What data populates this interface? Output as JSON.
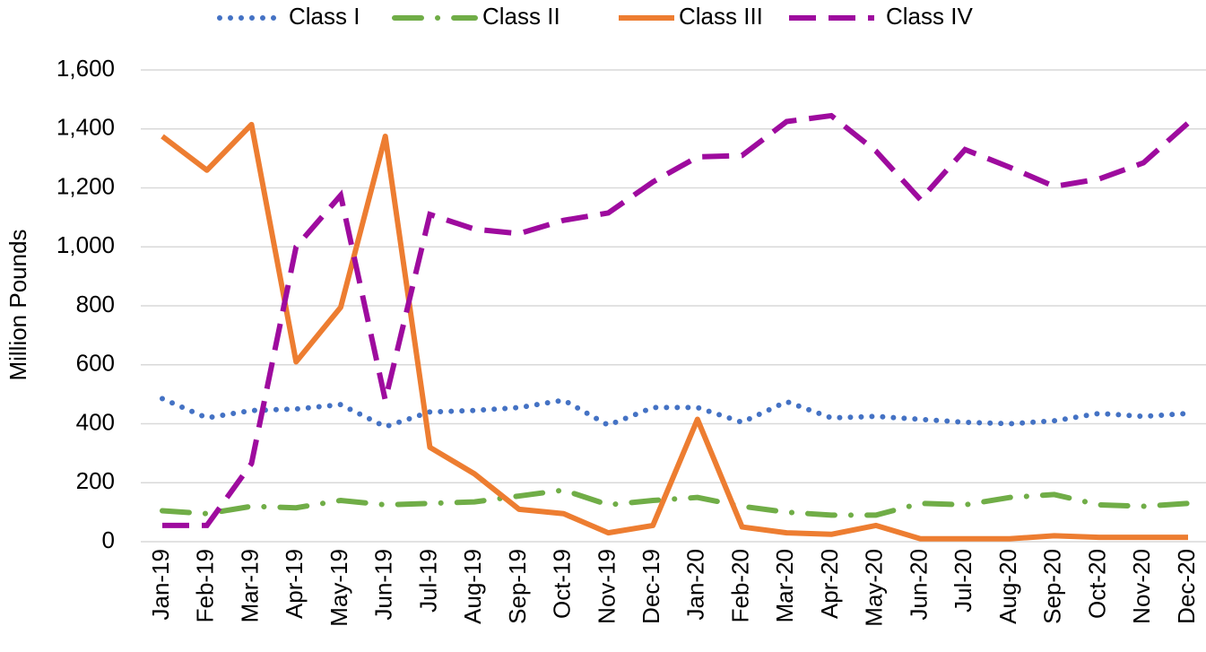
{
  "chart_data": {
    "type": "line",
    "y_label": "Million Pounds",
    "categories": [
      "Jan-19",
      "Feb-19",
      "Mar-19",
      "Apr-19",
      "May-19",
      "Jun-19",
      "Jul-19",
      "Aug-19",
      "Sep-19",
      "Oct-19",
      "Nov-19",
      "Dec-19",
      "Jan-20",
      "Feb-20",
      "Mar-20",
      "Apr-20",
      "May-20",
      "Jun-20",
      "Jul-20",
      "Aug-20",
      "Sep-20",
      "Oct-20",
      "Nov-20",
      "Dec-20"
    ],
    "series": [
      {
        "name": "Class I",
        "color": "#4472c4",
        "line_style": "dotted",
        "values": [
          485,
          420,
          445,
          450,
          465,
          390,
          440,
          445,
          455,
          480,
          395,
          455,
          455,
          405,
          475,
          420,
          425,
          415,
          405,
          400,
          410,
          435,
          425,
          435
        ]
      },
      {
        "name": "Class II",
        "color": "#70ad47",
        "line_style": "dashdot",
        "values": [
          105,
          95,
          120,
          115,
          140,
          125,
          130,
          135,
          155,
          175,
          125,
          140,
          150,
          120,
          100,
          90,
          90,
          130,
          125,
          150,
          160,
          125,
          120,
          130
        ]
      },
      {
        "name": "Class III",
        "color": "#ed7d31",
        "line_style": "solid",
        "values": [
          1375,
          1260,
          1415,
          610,
          795,
          1375,
          320,
          230,
          110,
          95,
          30,
          55,
          415,
          50,
          30,
          25,
          55,
          10,
          10,
          10,
          20,
          15,
          15,
          15
        ]
      },
      {
        "name": "Class IV",
        "color": "#9e0b9e",
        "line_style": "dashed",
        "values": [
          55,
          55,
          265,
          1000,
          1175,
          480,
          1110,
          1060,
          1045,
          1090,
          1115,
          1220,
          1305,
          1310,
          1425,
          1445,
          1325,
          1160,
          1330,
          1270,
          1205,
          1230,
          1285,
          1420
        ]
      }
    ],
    "ylim": [
      0,
      1600
    ],
    "yticks": [
      0,
      200,
      400,
      600,
      800,
      {
        "value": 1000,
        "label": "1,000"
      },
      {
        "value": 1200,
        "label": "1,200"
      },
      {
        "value": 1400,
        "label": "1,400"
      },
      {
        "value": 1600,
        "label": "1,600"
      }
    ],
    "grid": true,
    "legend": "top"
  }
}
